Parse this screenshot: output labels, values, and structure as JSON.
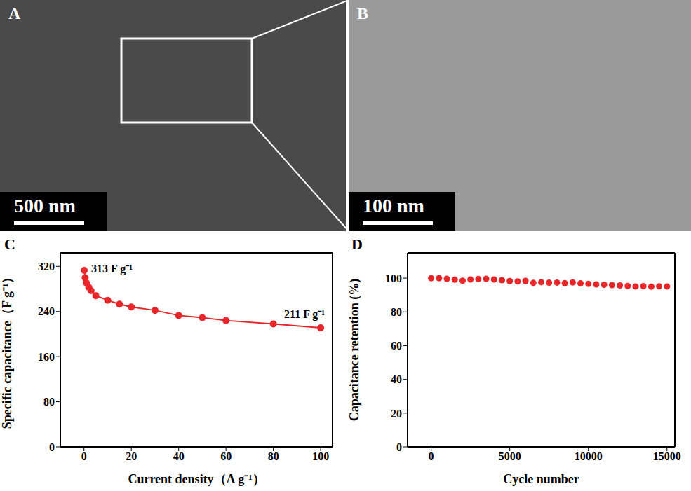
{
  "panels": [
    {
      "panel": "A",
      "scale_bar": "500 nm"
    },
    {
      "panel": "B",
      "scale_bar": "100 nm"
    }
  ],
  "chart_data": [
    {
      "panel": "C",
      "type": "line",
      "x": [
        0.1,
        0.5,
        1,
        2,
        3,
        5,
        10,
        15,
        20,
        30,
        40,
        50,
        60,
        80,
        100
      ],
      "values": [
        313,
        300,
        291,
        283,
        277,
        268,
        260,
        253,
        248,
        242,
        233,
        229,
        224,
        218,
        211
      ],
      "color": "#e8262a",
      "marker": "circle",
      "x_label": "Current density（A g⁻¹）",
      "y_label": "Specific capacitance（F g⁻¹）",
      "xlim": [
        -10,
        105
      ],
      "xticks": [
        0,
        20,
        40,
        60,
        80,
        100
      ],
      "ylim": [
        0,
        344
      ],
      "yticks": [
        0,
        80,
        160,
        240,
        320
      ],
      "grid": false,
      "annotations": [
        {
          "text": "313 F g⁻¹",
          "x": 0.1,
          "y": 313
        },
        {
          "text": "211 F g⁻¹",
          "x": 100,
          "y": 211
        }
      ]
    },
    {
      "panel": "D",
      "type": "scatter",
      "x": [
        0,
        500,
        1000,
        1500,
        2000,
        2500,
        3000,
        3500,
        4000,
        4500,
        5000,
        5500,
        6000,
        6500,
        7000,
        7500,
        8000,
        8500,
        9000,
        9500,
        10000,
        10500,
        11000,
        11500,
        12000,
        12500,
        13000,
        13500,
        14000,
        14500,
        15000
      ],
      "values": [
        100,
        100,
        99.6,
        99.1,
        98.5,
        99.2,
        99.5,
        99.6,
        99.2,
        98.8,
        98.3,
        98.1,
        98.4,
        97.2,
        97.6,
        97.3,
        97.4,
        97.0,
        97.5,
        96.9,
        96.6,
        96.3,
        96.1,
        95.9,
        95.7,
        95.4,
        95.1,
        95.3,
        95.0,
        95.2,
        95.1
      ],
      "color": "#e8262a",
      "marker": "circle",
      "x_label": "Cycle number",
      "y_label": "Capacitance retention (%)",
      "xlim": [
        -1500,
        15500
      ],
      "xticks": [
        0,
        5000,
        10000,
        15000
      ],
      "ylim": [
        0,
        115
      ],
      "yticks": [
        0,
        20,
        40,
        60,
        80,
        100
      ],
      "grid": false
    }
  ]
}
